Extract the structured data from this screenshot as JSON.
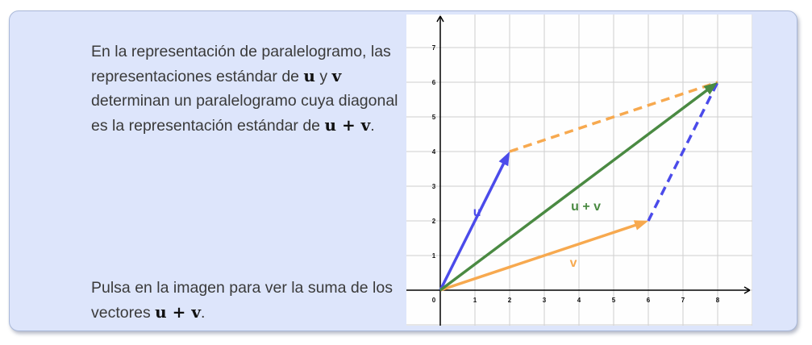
{
  "text": {
    "p1_a": "En la representación de paralelogramo, las representaciones estándar de ",
    "p1_u": "u",
    "p1_b": " y ",
    "p1_v": "v",
    "p1_c": " determinan un paralelogramo cuya diagonal es la representación estándar de ",
    "p1_uv": "u + v",
    "p1_d": ".",
    "p2_a": "Pulsa en la imagen para ver la suma de los vectores ",
    "p2_uv": "u + v",
    "p2_b": "."
  },
  "graph": {
    "x_ticks": [
      "0",
      "1",
      "2",
      "3",
      "4",
      "5",
      "6",
      "7",
      "8"
    ],
    "y_ticks": [
      "1",
      "2",
      "3",
      "4",
      "5",
      "6",
      "7"
    ],
    "vectors": [
      {
        "name": "u",
        "label": "u",
        "from": [
          0,
          0
        ],
        "to": [
          2,
          4
        ],
        "color": "#4b4bea",
        "dashed": false
      },
      {
        "name": "v",
        "label": "v",
        "from": [
          0,
          0
        ],
        "to": [
          6,
          2
        ],
        "color": "#f7a94f",
        "dashed": false
      },
      {
        "name": "u-plus-v",
        "label": "u + v",
        "from": [
          0,
          0
        ],
        "to": [
          8,
          6
        ],
        "color": "#4a8a42",
        "dashed": false
      },
      {
        "name": "v-translated",
        "label": "",
        "from": [
          2,
          4
        ],
        "to": [
          8,
          6
        ],
        "color": "#f7a94f",
        "dashed": true
      },
      {
        "name": "u-translated",
        "label": "",
        "from": [
          6,
          2
        ],
        "to": [
          8,
          6
        ],
        "color": "#4b4bea",
        "dashed": true
      }
    ],
    "colors": {
      "grid": "#cfcfcf",
      "axis": "#000000"
    }
  }
}
